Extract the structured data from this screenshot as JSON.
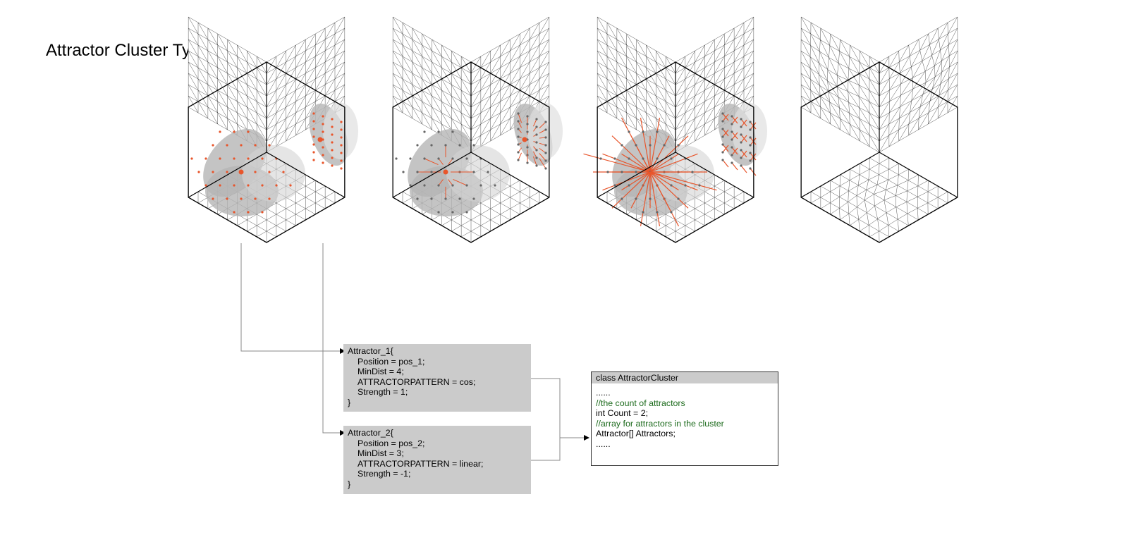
{
  "title": "Attractor Cluster Type",
  "colors": {
    "accent": "#e8552b",
    "shade": "#cbcbcb",
    "comment": "#1d6b1d",
    "line": "#000000"
  },
  "panels": [
    {
      "name": "attractor-points"
    },
    {
      "name": "attraction-vectors"
    },
    {
      "name": "deformation-force-lines"
    },
    {
      "name": "deformed-mesh"
    }
  ],
  "attractor_1": {
    "lines": [
      "Attractor_1{",
      "Position = pos_1;",
      "MinDist = 4;",
      "ATTRACTORPATTERN = cos;",
      "Strength = 1;",
      "}"
    ]
  },
  "attractor_2": {
    "lines": [
      "Attractor_2{",
      "Position = pos_2;",
      "MinDist = 3;",
      "ATTRACTORPATTERN = linear;",
      "Strength = -1;",
      "}"
    ]
  },
  "cluster": {
    "header": "class AttractorCluster",
    "lines": [
      {
        "text": "......",
        "kind": "code"
      },
      {
        "text": "//the count of attractors",
        "kind": "comment"
      },
      {
        "text": "int Count = 2;",
        "kind": "code"
      },
      {
        "text": "//array for attractors in the cluster",
        "kind": "comment"
      },
      {
        "text": "Attractor[] Attractors;",
        "kind": "code"
      },
      {
        "text": "......",
        "kind": "code"
      }
    ]
  }
}
